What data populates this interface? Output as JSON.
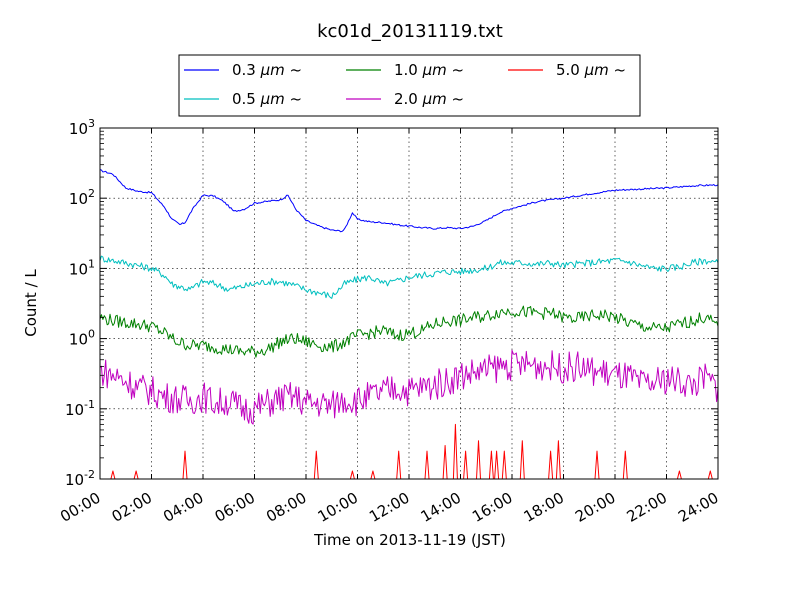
{
  "chart_data": {
    "type": "line",
    "title": "kc01d_20131119.txt",
    "xlabel": "Time on 2013-11-19 (JST)",
    "ylabel": "Count / L",
    "x_unit": "hours",
    "xlim": [
      0,
      24
    ],
    "ylim": [
      0.01,
      1000
    ],
    "yscale": "log",
    "grid": true,
    "legend_position": "top-center",
    "xticks": [
      {
        "value": 0,
        "label": "00:00"
      },
      {
        "value": 2,
        "label": "02:00"
      },
      {
        "value": 4,
        "label": "04:00"
      },
      {
        "value": 6,
        "label": "06:00"
      },
      {
        "value": 8,
        "label": "08:00"
      },
      {
        "value": 10,
        "label": "10:00"
      },
      {
        "value": 12,
        "label": "12:00"
      },
      {
        "value": 14,
        "label": "14:00"
      },
      {
        "value": 16,
        "label": "16:00"
      },
      {
        "value": 18,
        "label": "18:00"
      },
      {
        "value": 20,
        "label": "20:00"
      },
      {
        "value": 22,
        "label": "22:00"
      },
      {
        "value": 24,
        "label": "24:00"
      }
    ],
    "yticks": [
      {
        "value": 0.01,
        "base": "10",
        "exp": "-2"
      },
      {
        "value": 0.1,
        "base": "10",
        "exp": "-1"
      },
      {
        "value": 1,
        "base": "10",
        "exp": "0"
      },
      {
        "value": 10,
        "base": "10",
        "exp": "1"
      },
      {
        "value": 100,
        "base": "10",
        "exp": "2"
      },
      {
        "value": 1000,
        "base": "10",
        "exp": "3"
      }
    ],
    "series": [
      {
        "name": "0.3 μm ~",
        "label_prefix": "0.3 ",
        "label_unit": "μm",
        "label_suffix": " ~",
        "color": "#0000ff",
        "x": [
          0,
          0.5,
          1,
          1.5,
          2,
          2.5,
          2.8,
          3.1,
          3.3,
          3.6,
          4.0,
          4.4,
          4.8,
          5.2,
          5.6,
          6.0,
          6.5,
          7.0,
          7.3,
          7.6,
          8.0,
          8.5,
          9.0,
          9.4,
          9.5,
          9.8,
          10.0,
          10.5,
          11.0,
          11.5,
          12.0,
          12.5,
          13.0,
          13.5,
          14.0,
          14.5,
          15.0,
          15.5,
          16.0,
          16.5,
          17.0,
          18.0,
          19.0,
          20.0,
          21.0,
          22.0,
          23.0,
          24.0
        ],
        "y": [
          250,
          220,
          140,
          125,
          120,
          75,
          50,
          42,
          45,
          70,
          110,
          108,
          90,
          65,
          70,
          85,
          90,
          95,
          110,
          70,
          48,
          40,
          35,
          34,
          36,
          62,
          50,
          46,
          45,
          42,
          40,
          38,
          37,
          38,
          37,
          40,
          48,
          62,
          72,
          80,
          90,
          100,
          115,
          130,
          135,
          140,
          150,
          155
        ]
      },
      {
        "name": "0.5 μm ~",
        "label_prefix": "0.5 ",
        "label_unit": "μm",
        "label_suffix": " ~",
        "color": "#00bfbf",
        "x": [
          0,
          0.5,
          1,
          1.5,
          2,
          2.5,
          2.8,
          3.1,
          3.5,
          4.0,
          4.5,
          5.0,
          5.5,
          6.0,
          6.5,
          7.0,
          7.5,
          8.0,
          8.5,
          9.0,
          9.5,
          10.0,
          10.5,
          11.0,
          11.5,
          12.0,
          12.5,
          13.0,
          13.5,
          14.0,
          14.5,
          15.0,
          15.5,
          16.0,
          16.5,
          17.0,
          17.5,
          18.0,
          18.5,
          19.0,
          19.5,
          20.0,
          20.5,
          21.0,
          21.5,
          22.0,
          22.5,
          23.0,
          23.5,
          24.0
        ],
        "y": [
          14,
          13,
          12,
          11,
          10,
          8,
          6,
          5.5,
          5,
          6.5,
          6,
          5,
          5.5,
          6,
          6.5,
          6.5,
          5.8,
          5,
          4.5,
          4,
          6,
          7,
          7.5,
          6,
          6.5,
          7.5,
          8,
          8.5,
          9,
          9,
          9.5,
          10,
          12,
          12,
          12,
          11.5,
          12,
          11,
          11.5,
          12,
          12.5,
          13,
          12.5,
          11,
          10,
          10,
          10.5,
          12,
          13,
          12
        ]
      },
      {
        "name": "1.0 μm ~",
        "label_prefix": "1.0 ",
        "label_unit": "μm",
        "label_suffix": " ~",
        "color": "#008000",
        "x": [
          0,
          0.5,
          1,
          1.5,
          2,
          2.5,
          3.0,
          3.5,
          4.0,
          4.5,
          5.0,
          5.5,
          6.0,
          6.5,
          7.0,
          7.5,
          8.0,
          8.5,
          9.0,
          9.5,
          10.0,
          10.5,
          11.0,
          11.5,
          12.0,
          12.5,
          13.0,
          13.5,
          14.0,
          14.5,
          15.0,
          15.5,
          16.0,
          16.5,
          17.0,
          17.5,
          18.0,
          18.5,
          19.0,
          19.5,
          20.0,
          20.5,
          21.0,
          21.5,
          22.0,
          22.5,
          23.0,
          23.5,
          24.0
        ],
        "y": [
          2,
          1.8,
          1.7,
          1.6,
          1.5,
          1.2,
          0.9,
          0.8,
          0.8,
          0.75,
          0.7,
          0.65,
          0.65,
          0.7,
          0.9,
          1,
          0.9,
          0.8,
          0.75,
          0.9,
          1.1,
          1.2,
          1.3,
          1.1,
          1.2,
          1.3,
          1.6,
          1.8,
          1.8,
          2.0,
          2.1,
          2.4,
          2.5,
          2.4,
          2.3,
          2.3,
          2.0,
          1.9,
          2.1,
          2.2,
          2.0,
          1.7,
          1.5,
          1.4,
          1.4,
          1.6,
          1.8,
          2.0,
          1.5
        ]
      },
      {
        "name": "2.0 μm ~",
        "label_prefix": "2.0 ",
        "label_unit": "μm",
        "label_suffix": " ~",
        "color": "#bf00bf",
        "x": [
          0,
          0.5,
          1,
          1.5,
          2,
          2.5,
          3.0,
          3.5,
          4.0,
          4.5,
          5.0,
          5.5,
          6.0,
          6.5,
          7.0,
          7.5,
          8.0,
          8.5,
          9.0,
          9.5,
          10.0,
          10.5,
          11.0,
          11.5,
          12.0,
          12.5,
          13.0,
          13.5,
          14.0,
          14.5,
          15.0,
          15.5,
          16.0,
          16.5,
          17.0,
          17.5,
          18.0,
          18.5,
          19.0,
          19.5,
          20.0,
          20.5,
          21.0,
          21.5,
          22.0,
          22.5,
          23.0,
          23.5,
          24.0
        ],
        "y": [
          0.35,
          0.3,
          0.25,
          0.2,
          0.18,
          0.15,
          0.14,
          0.13,
          0.15,
          0.12,
          0.13,
          0.1,
          0.1,
          0.12,
          0.14,
          0.15,
          0.12,
          0.12,
          0.11,
          0.14,
          0.13,
          0.15,
          0.17,
          0.2,
          0.18,
          0.2,
          0.22,
          0.25,
          0.3,
          0.33,
          0.35,
          0.4,
          0.42,
          0.43,
          0.42,
          0.41,
          0.38,
          0.4,
          0.35,
          0.33,
          0.3,
          0.28,
          0.22,
          0.23,
          0.27,
          0.25,
          0.22,
          0.28,
          0.2
        ]
      },
      {
        "name": "5.0 μm ~",
        "label_prefix": "5.0 ",
        "label_unit": "μm",
        "label_suffix": " ~",
        "color": "#ff0000",
        "x": [
          0.5,
          1.4,
          3.3,
          8.4,
          9.8,
          10.6,
          11.6,
          12.7,
          13.4,
          13.8,
          14.2,
          14.7,
          15.2,
          15.4,
          15.7,
          16.4,
          17.5,
          17.8,
          19.3,
          20.4,
          22.5,
          23.7
        ],
        "y": [
          0.013,
          0.013,
          0.025,
          0.025,
          0.013,
          0.013,
          0.025,
          0.025,
          0.03,
          0.06,
          0.025,
          0.035,
          0.025,
          0.025,
          0.025,
          0.035,
          0.025,
          0.035,
          0.025,
          0.025,
          0.013,
          0.013
        ]
      }
    ]
  }
}
